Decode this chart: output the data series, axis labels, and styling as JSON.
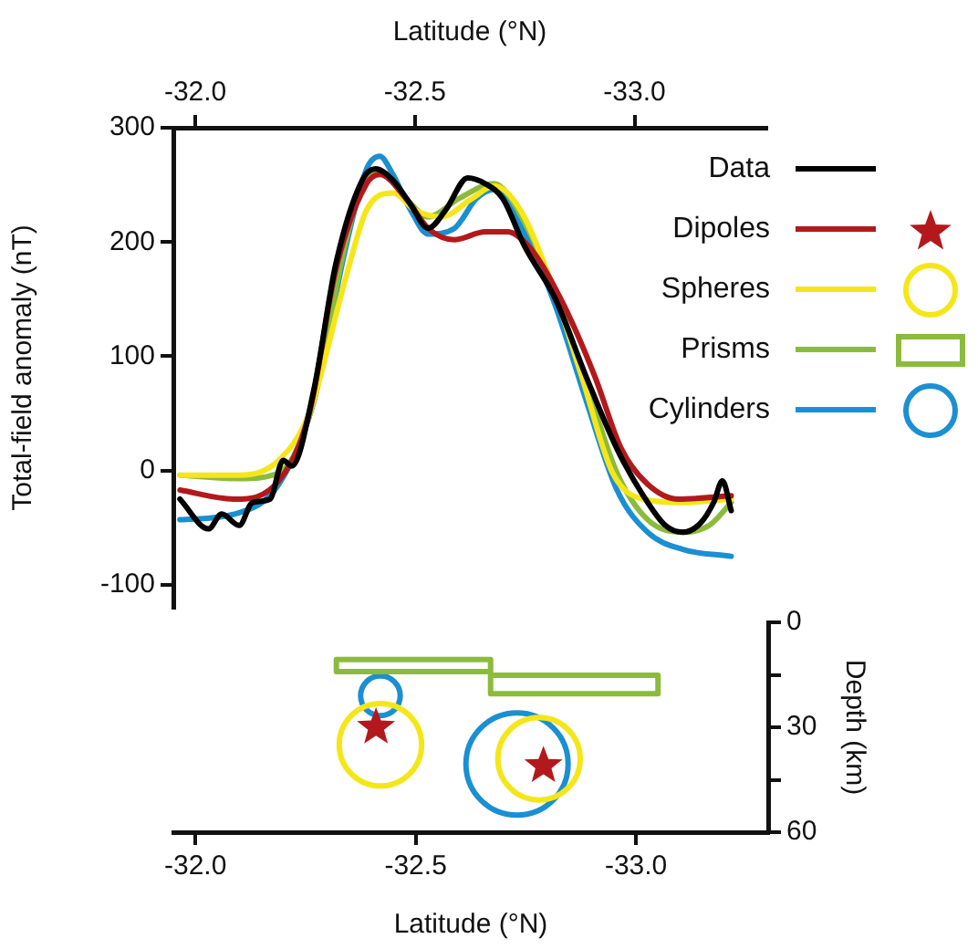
{
  "chart_data": [
    {
      "type": "line",
      "xlabel": "Latitude (°N)",
      "ylabel": "Total-field anomaly (nT)",
      "xlim": [
        -31.95,
        -33.3
      ],
      "xticks": [
        {
          "value": -32,
          "label": "-32.0"
        },
        {
          "value": -32.5,
          "label": "-32.5"
        },
        {
          "value": -33,
          "label": "-33.0"
        }
      ],
      "ylim": [
        -120,
        300
      ],
      "yticks": [
        -100,
        0,
        100,
        200,
        300
      ],
      "legend": "top right",
      "series": [
        {
          "name": "Data",
          "color": "#000000",
          "x": [
            -31.965,
            -32.03,
            -32.06,
            -32.1,
            -32.13,
            -32.17,
            -32.2,
            -32.22,
            -32.27,
            -32.32,
            -32.38,
            -32.41,
            -32.45,
            -32.49,
            -32.53,
            -32.57,
            -32.62,
            -32.66,
            -32.7,
            -32.75,
            -32.82,
            -32.89,
            -32.96,
            -33.02,
            -33.07,
            -33.11,
            -33.15,
            -33.18,
            -33.2,
            -33.22
          ],
          "values": [
            -25,
            -51,
            -38,
            -48,
            -28,
            -25,
            9,
            4,
            71,
            181,
            254,
            264,
            254,
            233,
            212,
            228,
            256,
            251,
            238,
            196,
            150,
            82,
            19,
            -22,
            -48,
            -54,
            -46,
            -28,
            -9,
            -35
          ]
        },
        {
          "name": "Dipoles",
          "color": "#b3191c",
          "x": [
            -31.965,
            -32.09,
            -32.19,
            -32.26,
            -32.32,
            -32.39,
            -32.42,
            -32.48,
            -32.53,
            -32.59,
            -32.66,
            -32.71,
            -32.77,
            -32.84,
            -32.91,
            -32.97,
            -33.03,
            -33.1,
            -33.22
          ],
          "values": [
            -17,
            -25,
            -9,
            51,
            176,
            251,
            259,
            238,
            212,
            202,
            209,
            209,
            191,
            144,
            82,
            19,
            -12,
            -25,
            -22
          ]
        },
        {
          "name": "Spheres",
          "color": "#f5e61a",
          "x": [
            -31.965,
            -32.1,
            -32.19,
            -32.26,
            -32.34,
            -32.39,
            -32.45,
            -32.5,
            -32.56,
            -32.63,
            -32.68,
            -32.74,
            -32.81,
            -32.88,
            -32.95,
            -33.02,
            -33.11,
            -33.22
          ],
          "values": [
            -4,
            -4,
            9,
            51,
            165,
            228,
            243,
            228,
            222,
            238,
            249,
            228,
            165,
            82,
            -2,
            -25,
            -28,
            -25
          ]
        },
        {
          "name": "Prisms",
          "color": "#8cbb3c",
          "x": [
            -31.965,
            -32.1,
            -32.19,
            -32.27,
            -32.34,
            -32.39,
            -32.42,
            -32.48,
            -32.53,
            -32.6,
            -32.68,
            -32.75,
            -32.82,
            -32.89,
            -32.96,
            -33.03,
            -33.11,
            -33.17,
            -33.22
          ],
          "values": [
            -4,
            -7,
            -2,
            61,
            196,
            259,
            262,
            238,
            222,
            238,
            251,
            217,
            155,
            77,
            -2,
            -43,
            -54,
            -48,
            -28
          ]
        },
        {
          "name": "Cylinders",
          "color": "#1b8fd2",
          "x": [
            -31.965,
            -32.09,
            -32.19,
            -32.27,
            -32.34,
            -32.39,
            -32.42,
            -32.45,
            -32.49,
            -32.53,
            -32.59,
            -32.64,
            -32.68,
            -32.75,
            -32.82,
            -32.89,
            -32.96,
            -33.03,
            -33.11,
            -33.22
          ],
          "values": [
            -43,
            -38,
            -12,
            61,
            191,
            264,
            275,
            259,
            228,
            207,
            212,
            238,
            246,
            207,
            144,
            61,
            -17,
            -54,
            -69,
            -75
          ]
        }
      ]
    },
    {
      "type": "bubble",
      "xlabel": "Latitude (°N)",
      "ylabel": "Depth (km)",
      "xlim": [
        -31.95,
        -33.3
      ],
      "xticks": [
        {
          "value": -32,
          "label": "-32.0"
        },
        {
          "value": -32.5,
          "label": "-32.5"
        },
        {
          "value": -33,
          "label": "-33.0"
        }
      ],
      "ylim": [
        60,
        0
      ],
      "yticks": [
        0,
        {
          "value": 15,
          "label": null
        },
        30,
        {
          "value": 45,
          "label": null
        },
        60
      ],
      "series": [
        {
          "type": "scatter",
          "marker": "star",
          "color": "#b3191c",
          "x": [
            -32.41,
            -32.79
          ],
          "values": [
            30,
            41
          ]
        },
        {
          "marker": "circle",
          "color": "#f5e61a",
          "x": [
            -32.42,
            -32.78
          ],
          "values": [
            35,
            39
          ],
          "sizes": [
            0.65,
            0.65
          ]
        },
        {
          "type": "line",
          "color": "#8cbb3c",
          "x": [
            -32.67,
            -32.32,
            -32.32,
            -32.67,
            -32.67,
            -32.67,
            -33.05,
            -33.05,
            -32.67,
            -32.67
          ],
          "values": [
            14.1,
            14.1,
            10.6,
            10.6,
            14.1,
            15.1,
            15.1,
            20.4,
            20.4,
            15.1
          ]
        },
        {
          "marker": "circle",
          "color": "#1b8fd2",
          "x": [
            -32.42,
            -32.73
          ],
          "values": [
            21,
            40.5
          ],
          "sizes": [
            0.15,
            1
          ]
        }
      ]
    }
  ]
}
